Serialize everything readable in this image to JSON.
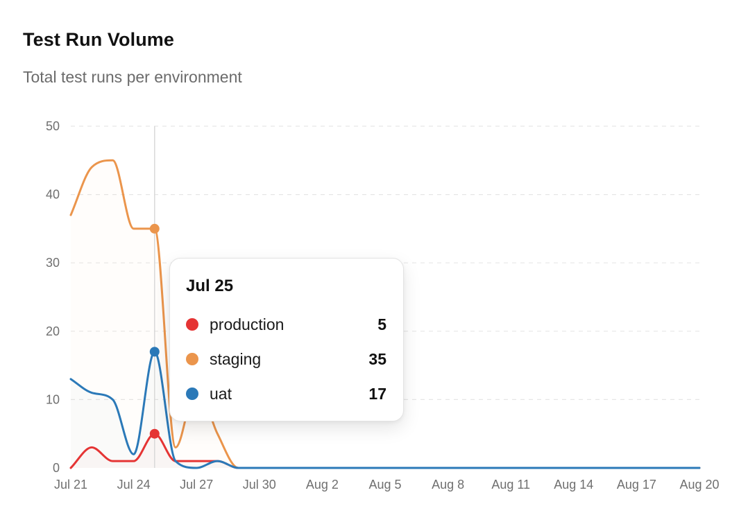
{
  "header": {
    "title": "Test Run Volume",
    "subtitle": "Total test runs per environment"
  },
  "colors": {
    "production": "#e53434",
    "staging": "#eb954c",
    "uat": "#2b79b8",
    "grid": "#e6e6e6",
    "hover_line": "#d9d9d9"
  },
  "tooltip": {
    "date": "Jul 25",
    "rows": [
      {
        "name": "production",
        "value": "5",
        "color": "#e53434"
      },
      {
        "name": "staging",
        "value": "35",
        "color": "#eb954c"
      },
      {
        "name": "uat",
        "value": "17",
        "color": "#2b79b8"
      }
    ]
  },
  "chart_data": {
    "type": "line",
    "title": "Test Run Volume",
    "subtitle": "Total test runs per environment",
    "x_start": "Jul 21",
    "x_end": "Aug 20",
    "x_tick_labels": [
      "Jul 21",
      "Jul 24",
      "Jul 27",
      "Jul 30",
      "Aug 2",
      "Aug 5",
      "Aug 8",
      "Aug 11",
      "Aug 14",
      "Aug 17",
      "Aug 20"
    ],
    "y_ticks": [
      0,
      10,
      20,
      30,
      40,
      50
    ],
    "ylim": [
      0,
      50
    ],
    "grid": true,
    "hover_date": "Jul 25",
    "x": [
      "Jul 21",
      "Jul 22",
      "Jul 23",
      "Jul 24",
      "Jul 25",
      "Jul 26",
      "Jul 27",
      "Jul 28",
      "Jul 29",
      "Jul 30",
      "Jul 31",
      "Aug 1",
      "Aug 2",
      "Aug 3",
      "Aug 4",
      "Aug 5",
      "Aug 6",
      "Aug 7",
      "Aug 8",
      "Aug 9",
      "Aug 10",
      "Aug 11",
      "Aug 12",
      "Aug 13",
      "Aug 14",
      "Aug 15",
      "Aug 16",
      "Aug 17",
      "Aug 18",
      "Aug 19",
      "Aug 20"
    ],
    "series": [
      {
        "name": "production",
        "color": "#e53434",
        "values": [
          0,
          3,
          1,
          1,
          5,
          1,
          1,
          1,
          0,
          0,
          0,
          0,
          0,
          0,
          0,
          0,
          0,
          0,
          0,
          0,
          0,
          0,
          0,
          0,
          0,
          0,
          0,
          0,
          0,
          0,
          0
        ]
      },
      {
        "name": "staging",
        "color": "#eb954c",
        "values": [
          37,
          44,
          45,
          35,
          35,
          3,
          12,
          5,
          0,
          0,
          0,
          0,
          0,
          0,
          0,
          0,
          0,
          0,
          0,
          0,
          0,
          0,
          0,
          0,
          0,
          0,
          0,
          0,
          0,
          0,
          0
        ]
      },
      {
        "name": "uat",
        "color": "#2b79b8",
        "values": [
          13,
          11,
          10,
          2,
          17,
          1,
          0,
          1,
          0,
          0,
          0,
          0,
          0,
          0,
          0,
          0,
          0,
          0,
          0,
          0,
          0,
          0,
          0,
          0,
          0,
          0,
          0,
          0,
          0,
          0,
          0
        ]
      }
    ]
  }
}
